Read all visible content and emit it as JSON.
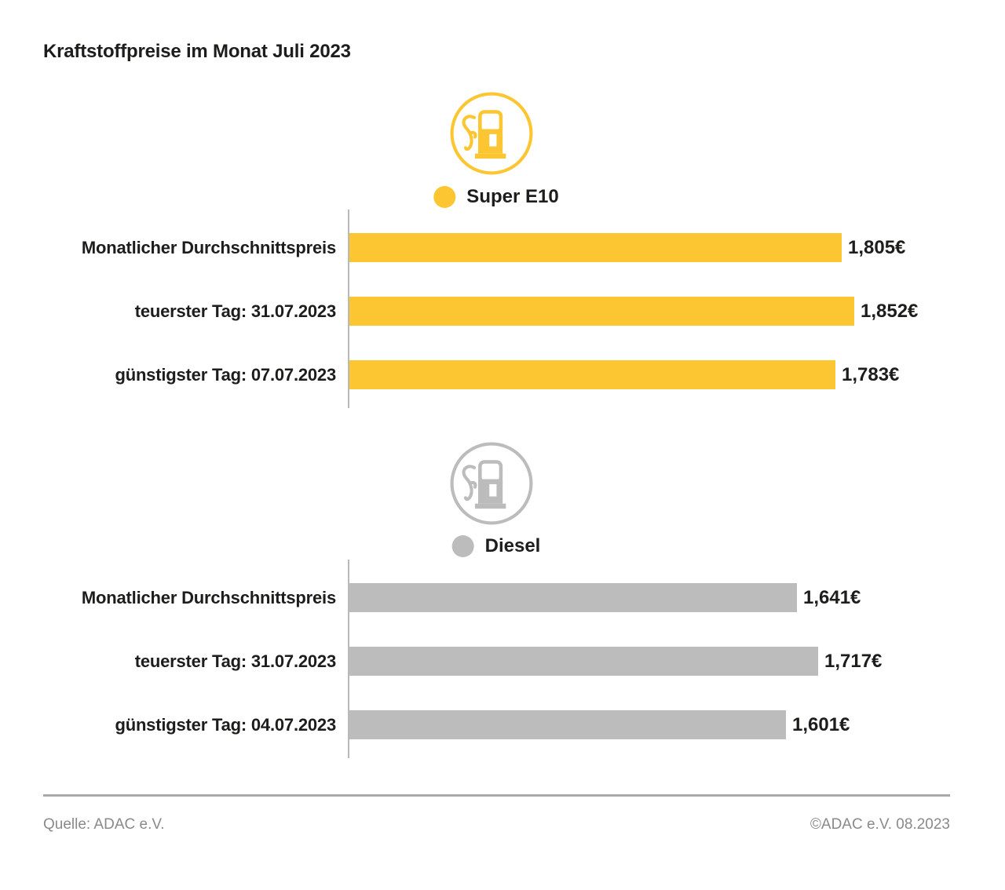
{
  "page": {
    "title": "Kraftstoffpreise im Monat Juli 2023"
  },
  "chart_data": [
    {
      "type": "bar",
      "orientation": "horizontal",
      "title": "Super E10",
      "icon": "fuel-pump-icon",
      "color": "#FBC631",
      "categories": [
        "Monatlicher Durchschnittspreis",
        "teuerster Tag: 31.07.2023",
        "günstigster Tag: 07.07.2023"
      ],
      "values": [
        1.805,
        1.852,
        1.783
      ],
      "labels": [
        "1,805€",
        "1,852€",
        "1,783€"
      ],
      "unit": "€",
      "xlim": [
        0,
        2.0
      ],
      "grid": false,
      "legend_position": "top-center"
    },
    {
      "type": "bar",
      "orientation": "horizontal",
      "title": "Diesel",
      "icon": "fuel-pump-icon",
      "color": "#BCBCBC",
      "categories": [
        "Monatlicher Durchschnittspreis",
        "teuerster Tag: 31.07.2023",
        "günstigster Tag: 04.07.2023"
      ],
      "values": [
        1.641,
        1.717,
        1.601
      ],
      "labels": [
        "1,641€",
        "1,717€",
        "1,601€"
      ],
      "unit": "€",
      "xlim": [
        0,
        2.0
      ],
      "grid": false,
      "legend_position": "top-center"
    }
  ],
  "colors": {
    "super_e10": "#FBC631",
    "diesel": "#BCBCBC",
    "axis": "#B9B9B9",
    "text": "#1D1D1B",
    "footer_text": "#8A8A8A",
    "divider": "#A9A9A9"
  },
  "footer": {
    "source": "Quelle: ADAC e.V.",
    "copyright": "©ADAC e.V. 08.2023"
  }
}
